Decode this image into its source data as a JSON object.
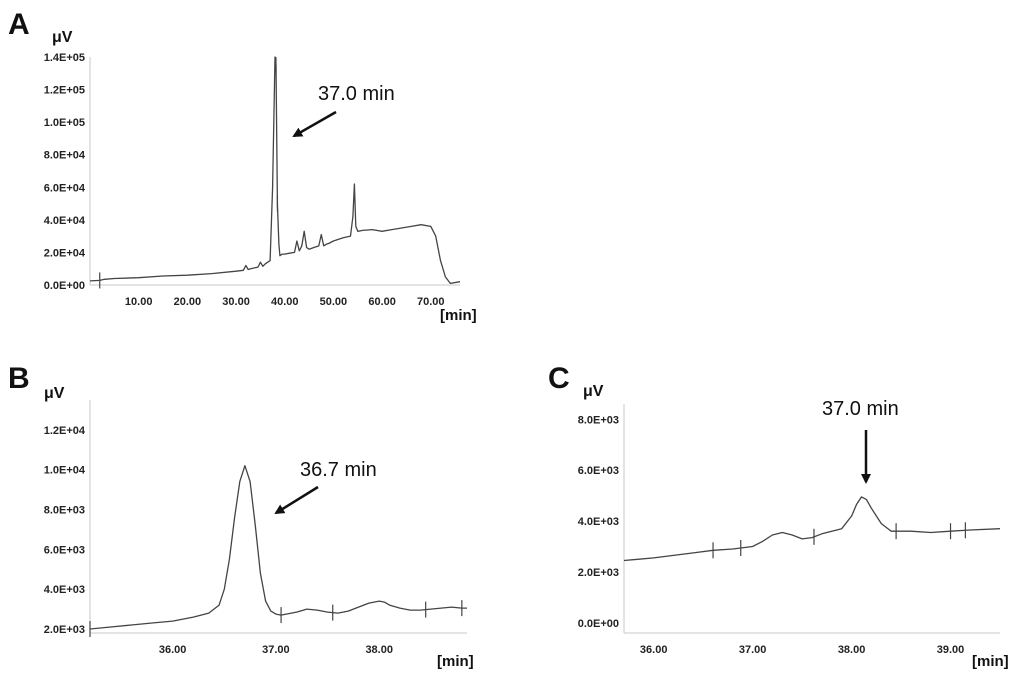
{
  "chart_data": [
    {
      "id": "A",
      "type": "line",
      "panel_label": "A",
      "ylabel": "μV",
      "xlabel": "[min]",
      "xlim": [
        0,
        76
      ],
      "ylim": [
        0,
        140000
      ],
      "xticks": [
        10,
        20,
        30,
        40,
        50,
        60,
        70
      ],
      "xtick_labels": [
        "10.00",
        "20.00",
        "30.00",
        "40.00",
        "50.00",
        "60.00",
        "70.00"
      ],
      "yticks": [
        0,
        20000,
        40000,
        60000,
        80000,
        100000,
        120000,
        140000
      ],
      "ytick_labels": [
        "0.0E+00",
        "2.0E+04",
        "4.0E+04",
        "6.0E+04",
        "8.0E+04",
        "1.0E+05",
        "1.2E+05",
        "1.4E+05"
      ],
      "annotation": {
        "text": "37.0 min",
        "x": 38.2,
        "y": 90000
      },
      "x": [
        0,
        2,
        3,
        5,
        10,
        15,
        20,
        25,
        30,
        31.5,
        32,
        32.5,
        33,
        34.5,
        35,
        35.5,
        36,
        37,
        37.5,
        38,
        38.2,
        38.5,
        38.8,
        39,
        39.5,
        40,
        41,
        42,
        42.5,
        43,
        43.5,
        44,
        44.5,
        45,
        46,
        47,
        47.5,
        48,
        48.5,
        49,
        50,
        52,
        53.5,
        54,
        54.3,
        54.6,
        55,
        56,
        58,
        60,
        62,
        64,
        66,
        68,
        70,
        71,
        72,
        73,
        74,
        76
      ],
      "values": [
        2500,
        2800,
        3500,
        4000,
        4500,
        5500,
        6000,
        7000,
        8500,
        9000,
        12000,
        9500,
        10000,
        11000,
        14000,
        11500,
        13000,
        15000,
        60000,
        140000,
        135000,
        50000,
        25000,
        18000,
        19000,
        19000,
        19500,
        20000,
        27000,
        21000,
        24000,
        33000,
        23000,
        22000,
        23000,
        24000,
        31000,
        24000,
        25000,
        25500,
        27000,
        29000,
        30000,
        42000,
        62000,
        36000,
        33000,
        33500,
        34000,
        33000,
        34000,
        35000,
        36000,
        37000,
        36000,
        30000,
        15000,
        5000,
        1000,
        2000
      ],
      "markers": [
        2,
        38.2,
        38.5
      ]
    },
    {
      "id": "B",
      "type": "line",
      "panel_label": "B",
      "ylabel": "μV",
      "xlabel": "[min]",
      "xlim": [
        35.2,
        38.85
      ],
      "ylim": [
        1800,
        13500
      ],
      "xticks": [
        36,
        37,
        38
      ],
      "xtick_labels": [
        "36.00",
        "37.00",
        "38.00"
      ],
      "yticks": [
        2000,
        4000,
        6000,
        8000,
        10000,
        12000
      ],
      "ytick_labels": [
        "2.0E+03",
        "4.0E+03",
        "6.0E+03",
        "8.0E+03",
        "1.0E+04",
        "1.2E+04"
      ],
      "annotation": {
        "text": "36.7 min",
        "x": 36.95,
        "y": 8000
      },
      "x": [
        35.2,
        35.4,
        35.6,
        35.8,
        36.0,
        36.2,
        36.35,
        36.45,
        36.5,
        36.55,
        36.6,
        36.65,
        36.7,
        36.75,
        36.8,
        36.85,
        36.9,
        36.95,
        37.0,
        37.05,
        37.1,
        37.2,
        37.3,
        37.4,
        37.5,
        37.6,
        37.7,
        37.8,
        37.9,
        38.0,
        38.05,
        38.1,
        38.2,
        38.3,
        38.4,
        38.5,
        38.6,
        38.7,
        38.8,
        38.85
      ],
      "values": [
        2000,
        2100,
        2200,
        2300,
        2400,
        2600,
        2800,
        3200,
        4000,
        5500,
        7600,
        9400,
        10200,
        9400,
        7200,
        4800,
        3400,
        2900,
        2750,
        2700,
        2750,
        2850,
        3000,
        2950,
        2850,
        2800,
        2900,
        3100,
        3300,
        3400,
        3350,
        3200,
        3050,
        2950,
        2950,
        3000,
        3050,
        3100,
        3050,
        3050
      ],
      "markers": [
        35.2,
        37.05,
        37.55,
        38.45,
        38.8
      ]
    },
    {
      "id": "C",
      "type": "line",
      "panel_label": "C",
      "ylabel": "μV",
      "xlabel": "[min]",
      "xlim": [
        35.7,
        39.5
      ],
      "ylim": [
        -400,
        8600
      ],
      "xticks": [
        36,
        37,
        38,
        39
      ],
      "xtick_labels": [
        "36.00",
        "37.00",
        "38.00",
        "39.00"
      ],
      "yticks": [
        0,
        2000,
        4000,
        6000,
        8000
      ],
      "ytick_labels": [
        "0.0E+00",
        "2.0E+03",
        "4.0E+03",
        "6.0E+03",
        "8.0E+03"
      ],
      "annotation": {
        "text": "37.0 min",
        "x": 38.07,
        "y": 5100
      },
      "x": [
        35.7,
        36.0,
        36.2,
        36.4,
        36.6,
        36.8,
        37.0,
        37.1,
        37.2,
        37.3,
        37.4,
        37.5,
        37.6,
        37.7,
        37.8,
        37.9,
        38.0,
        38.05,
        38.1,
        38.15,
        38.2,
        38.3,
        38.4,
        38.6,
        38.8,
        39.0,
        39.2,
        39.5
      ],
      "values": [
        2450,
        2550,
        2650,
        2750,
        2850,
        2900,
        3000,
        3200,
        3450,
        3550,
        3450,
        3300,
        3350,
        3500,
        3600,
        3700,
        4200,
        4650,
        4950,
        4850,
        4500,
        3900,
        3600,
        3600,
        3550,
        3600,
        3650,
        3700
      ],
      "markers": [
        36.6,
        36.88,
        37.62,
        38.45,
        39.0,
        39.15
      ]
    }
  ]
}
